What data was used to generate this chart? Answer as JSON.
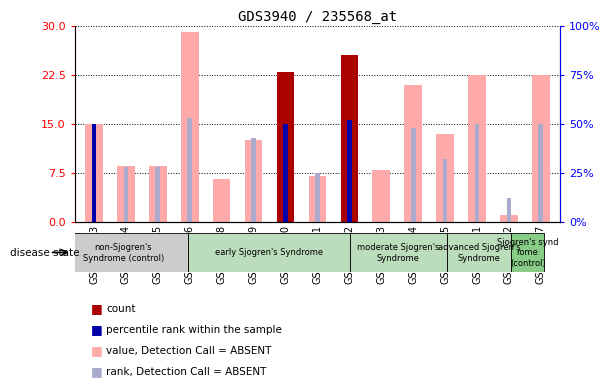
{
  "title": "GDS3940 / 235568_at",
  "samples": [
    "GSM569473",
    "GSM569474",
    "GSM569475",
    "GSM569476",
    "GSM569478",
    "GSM569479",
    "GSM569480",
    "GSM569481",
    "GSM569482",
    "GSM569483",
    "GSM569484",
    "GSM569485",
    "GSM569471",
    "GSM569472",
    "GSM569477"
  ],
  "value_absent": [
    15.0,
    8.5,
    8.5,
    29.0,
    6.5,
    12.5,
    null,
    7.0,
    null,
    8.0,
    21.0,
    13.5,
    22.5,
    1.0,
    22.5
  ],
  "rank_absent": [
    43.0,
    28.0,
    28.0,
    53.0,
    null,
    43.0,
    null,
    25.0,
    null,
    null,
    48.0,
    32.0,
    50.0,
    12.0,
    50.0
  ],
  "count_present": [
    null,
    null,
    null,
    null,
    null,
    null,
    23.0,
    null,
    25.5,
    null,
    null,
    null,
    null,
    null,
    null
  ],
  "rank_present": [
    50.0,
    null,
    null,
    null,
    null,
    null,
    50.0,
    null,
    52.0,
    null,
    null,
    null,
    null,
    null,
    null
  ],
  "disease_groups": [
    {
      "label": "non-Sjogren's\nSyndrome (control)",
      "start": 0,
      "end": 3,
      "color": "#cccccc"
    },
    {
      "label": "early Sjogren's Syndrome",
      "start": 4,
      "end": 8,
      "color": "#bbddbb"
    },
    {
      "label": "moderate Sjogren's\nSyndrome",
      "start": 9,
      "end": 11,
      "color": "#bbddbb"
    },
    {
      "label": "advanced Sjogren's\nSyndrome",
      "start": 12,
      "end": 13,
      "color": "#bbddbb"
    },
    {
      "label": "Sjogren's synd\nrome\n(control)",
      "start": 14,
      "end": 14,
      "color": "#88cc88"
    }
  ],
  "ylim_left": [
    0,
    30
  ],
  "ylim_right": [
    0,
    100
  ],
  "yticks_left": [
    0,
    7.5,
    15,
    22.5,
    30
  ],
  "yticks_right": [
    0,
    25,
    50,
    75,
    100
  ],
  "color_value_absent": "#ffaaaa",
  "color_rank_absent": "#aaaacc",
  "color_count_present": "#aa0000",
  "color_rank_present": "#0000aa",
  "background_color": "#ffffff"
}
